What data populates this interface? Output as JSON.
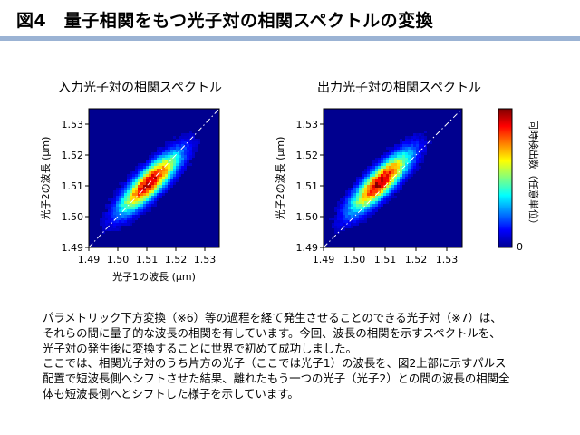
{
  "header": {
    "title": "図4　量子相関をもつ光子対の相関スペクトルの変換",
    "accent_color": "#9bb3d4"
  },
  "chart_data": [
    {
      "type": "heatmap",
      "title": "入力光子対の相関スペクトル",
      "xlabel": "光子1の波長 (μm)",
      "ylabel": "光子2の波長 (μm)",
      "xlim": [
        1.49,
        1.535
      ],
      "ylim": [
        1.49,
        1.535
      ],
      "xticks": [
        "1.49",
        "1.50",
        "1.51",
        "1.52",
        "1.53"
      ],
      "yticks": [
        "1.49",
        "1.50",
        "1.51",
        "1.52",
        "1.53"
      ],
      "peak": [
        1.511,
        1.511
      ],
      "diagonal_line": true,
      "grid": false
    },
    {
      "type": "heatmap",
      "title": "出力光子対の相関スペクトル",
      "xlabel": "",
      "ylabel": "光子2の波長 (μm)",
      "xlim": [
        1.49,
        1.535
      ],
      "ylim": [
        1.49,
        1.535
      ],
      "xticks": [
        "1.49",
        "1.50",
        "1.51",
        "1.52",
        "1.53"
      ],
      "yticks": [
        "1.49",
        "1.50",
        "1.51",
        "1.52",
        "1.53"
      ],
      "peak": [
        1.5085,
        1.5112
      ],
      "diagonal_line": true,
      "grid": false
    }
  ],
  "colorbar": {
    "label": "同時検出数（任意単位）",
    "min_label": "0",
    "colors": [
      "#7f0000",
      "#ff0000",
      "#ff8000",
      "#ffff00",
      "#80ff80",
      "#00ffff",
      "#0080ff",
      "#0000ff",
      "#00008f"
    ]
  },
  "description": [
    "パラメトリック下方変換（※6）等の過程を経て発生させることのできる光子対（※7）は、",
    "それらの間に量子的な波長の相関を有しています。今回、波長の相関を示すスペクトルを、",
    "光子対の発生後に変換することに世界で初めて成功しました。",
    "ここでは、相関光子対のうち片方の光子（ここでは光子1）の波長を、図2上部に示すパルス",
    "配置で短波長側へシフトさせた結果、離れたもう一つの光子（光子2）との間の波長の相関全",
    "体も短波長側へとシフトした様子を示しています。"
  ]
}
